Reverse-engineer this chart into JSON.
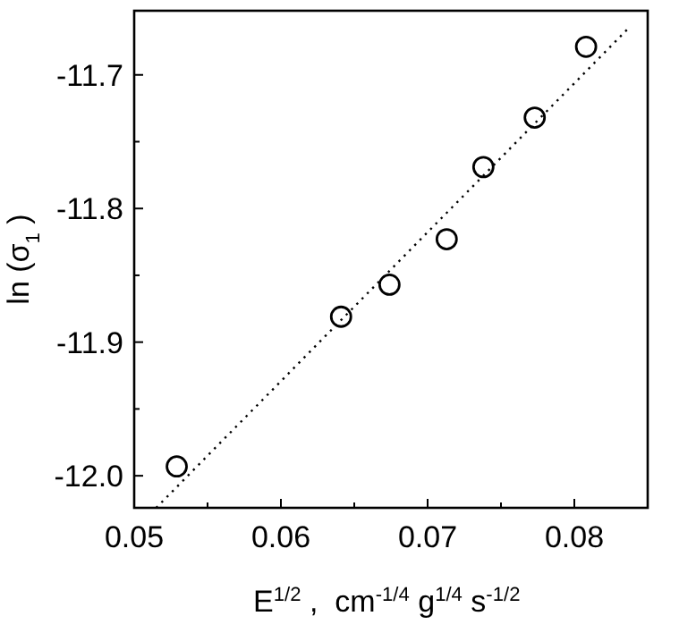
{
  "chart_data": {
    "type": "scatter",
    "xlabel": "E$^{1/2}$,  cm$^{-1/4}$g$^{1/4}$s$^{-1/2}$",
    "ylabel": "ln (σ$_{1}$)",
    "xlim": [
      0.05,
      0.085
    ],
    "ylim": [
      -12.024,
      -11.652
    ],
    "xticks": [
      0.05,
      {
        "value": 0.055,
        "label": null
      },
      0.06,
      {
        "value": 0.065,
        "label": null
      },
      0.07,
      {
        "value": 0.075,
        "label": null
      },
      0.08
    ],
    "yticks": [
      {
        "value": -12.0,
        "label": "-12.0"
      },
      {
        "value": -11.95,
        "label": null
      },
      {
        "value": -11.9,
        "label": "-11.9"
      },
      {
        "value": -11.85,
        "label": null
      },
      {
        "value": -11.8,
        "label": "-11.8"
      },
      {
        "value": -11.75,
        "label": null
      },
      {
        "value": -11.7,
        "label": "-11.7"
      }
    ],
    "grid": false,
    "series": [
      {
        "color": "#000000",
        "marker": "circle",
        "x": [
          0.0529,
          0.0641,
          0.0674,
          0.0713,
          0.0738,
          0.0773,
          0.0808
        ],
        "values": [
          -11.993,
          -11.881,
          -11.857,
          -11.823,
          -11.769,
          -11.732,
          -11.679
        ]
      },
      {
        "type": "line",
        "color": "#000000",
        "line_style": "dotted",
        "x": [
          0.0515,
          0.0837
        ],
        "values": [
          -12.024,
          -11.665
        ]
      }
    ]
  }
}
